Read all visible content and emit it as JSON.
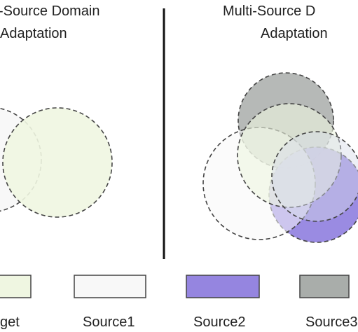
{
  "left_panel": {
    "title_line1": "-Source Domain",
    "title_line2": "Adaptation"
  },
  "right_panel": {
    "title_line1": "Multi-Source D",
    "title_line2": "Adaptation"
  },
  "legend": [
    {
      "label": "get",
      "color": "#eff6e1"
    },
    {
      "label": "Source1",
      "color": "#f8f8f8"
    },
    {
      "label": "Source2",
      "color": "#9585e0"
    },
    {
      "label": "Source3",
      "color": "#a9adaa"
    }
  ],
  "colors": {
    "target": "#eff6e1",
    "source1": "#f8f8f8",
    "source2": "#9585e0",
    "source3": "#a9adaa",
    "divider": "#111111",
    "outline": "#444444"
  }
}
